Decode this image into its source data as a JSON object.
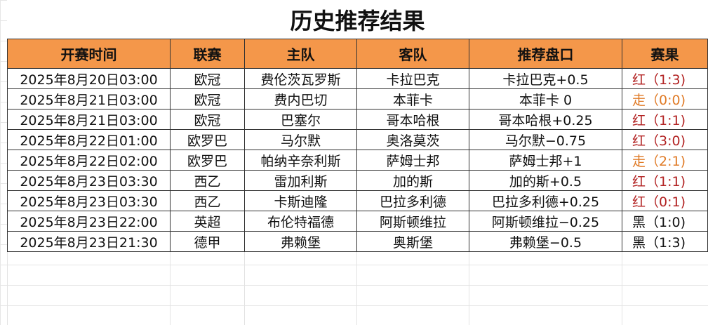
{
  "title": "历史推荐结果",
  "colors": {
    "header_bg": "#f4974a",
    "red": "#b22222",
    "orange": "#e07b27",
    "black": "#111111"
  },
  "columns": [
    "开赛时间",
    "联赛",
    "主队",
    "客队",
    "推荐盘口",
    "赛果"
  ],
  "rows": [
    {
      "time": "2025年8月20日03:00",
      "league": "欧冠",
      "home": "费伦茨瓦罗斯",
      "away": "卡拉巴克",
      "pick": "卡拉巴克+0.5",
      "result": "红（1:3)",
      "status": "red"
    },
    {
      "time": "2025年8月21日03:00",
      "league": "欧冠",
      "home": "费内巴切",
      "away": "本菲卡",
      "pick": "本菲卡 0",
      "result": "走（0:0)",
      "status": "orange"
    },
    {
      "time": "2025年8月21日03:00",
      "league": "欧冠",
      "home": "巴塞尔",
      "away": "哥本哈根",
      "pick": "哥本哈根+0.25",
      "result": "红（1:1)",
      "status": "red"
    },
    {
      "time": "2025年8月22日01:00",
      "league": "欧罗巴",
      "home": "马尔默",
      "away": "奥洛莫茨",
      "pick": "马尔默−0.75",
      "result": "红（3:0)",
      "status": "red"
    },
    {
      "time": "2025年8月22日02:00",
      "league": "欧罗巴",
      "home": "帕纳辛奈利斯",
      "away": "萨姆士邦",
      "pick": "萨姆士邦+1",
      "result": "走（2:1)",
      "status": "orange"
    },
    {
      "time": "2025年8月23日03:30",
      "league": "西乙",
      "home": "雷加利斯",
      "away": "加的斯",
      "pick": "加的斯+0.5",
      "result": "红（1:1)",
      "status": "red"
    },
    {
      "time": "2025年8月23日03:30",
      "league": "西乙",
      "home": "卡斯迪隆",
      "away": "巴拉多利德",
      "pick": "巴拉多利德+0.25",
      "result": "红（0:1)",
      "status": "red"
    },
    {
      "time": "2025年8月23日22:00",
      "league": "英超",
      "home": "布伦特福德",
      "away": "阿斯顿维拉",
      "pick": "阿斯顿维拉−0.25",
      "result": "黑（1:0)",
      "status": "black"
    },
    {
      "time": "2025年8月23日21:30",
      "league": "德甲",
      "home": "弗赖堡",
      "away": "奥斯堡",
      "pick": "弗赖堡−0.5",
      "result": "黑（1:3)",
      "status": "black"
    }
  ]
}
